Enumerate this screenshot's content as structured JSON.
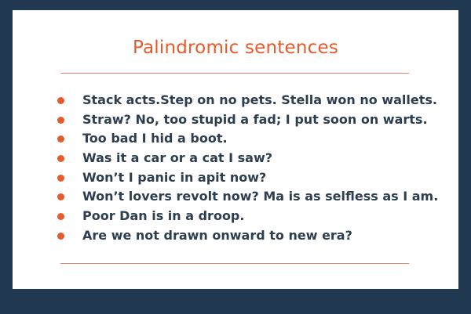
{
  "slide": {
    "title": "Palindromic sentences",
    "sentences": [
      "Stack acts.Step on no pets. Stella won no wallets.",
      "Straw? No, too stupid a fad; I put soon on warts.",
      "Too bad I hid a boot.",
      "Was it a car or a cat I saw?",
      "Won’t I panic in apit now?",
      "Won’t lovers revolt now? Ma is as selfless as I am.",
      "Poor Dan is in a droop.",
      "Are we not drawn  onward to new era?"
    ]
  },
  "colors": {
    "background": "#213a52",
    "card": "#ffffff",
    "accent": "#e85a2a",
    "text": "#2c3e50"
  }
}
